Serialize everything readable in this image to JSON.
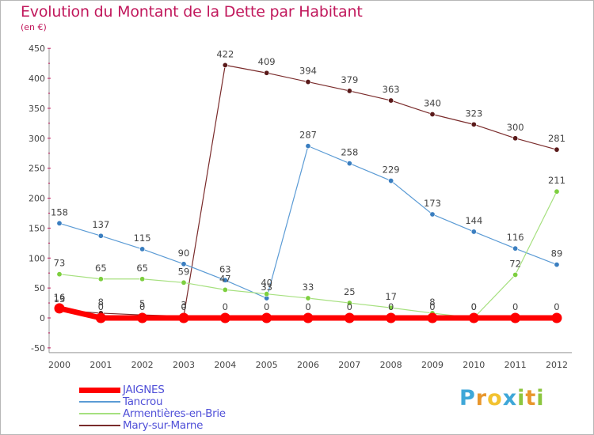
{
  "header": {
    "title": "Evolution du Montant de la Dette par Habitant",
    "subtitle": "(en €)"
  },
  "brand": {
    "letters": [
      "P",
      "r",
      "o",
      "x",
      "i",
      "t",
      "i"
    ],
    "colors": [
      "#3ea7d8",
      "#e8962c",
      "#f2c230",
      "#3ea7d8",
      "#8cc63f",
      "#e8962c",
      "#8cc63f"
    ]
  },
  "chart_data": {
    "type": "line",
    "title": "Evolution du Montant de la Dette par Habitant",
    "ylabel": "(en €)",
    "xlabel": "",
    "x": [
      "2000",
      "2001",
      "2002",
      "2003",
      "2004",
      "2005",
      "2006",
      "2007",
      "2008",
      "2009",
      "2010",
      "2011",
      "2012"
    ],
    "ylim": [
      -50,
      450
    ],
    "yticks": [
      -50,
      0,
      50,
      100,
      150,
      200,
      250,
      300,
      350,
      400,
      450
    ],
    "grid": false,
    "legend_position": "bottom-left",
    "series": [
      {
        "name": "JAIGNES",
        "color": "#ff0000",
        "values": [
          16,
          0,
          0,
          0,
          0,
          0,
          0,
          0,
          0,
          0,
          0,
          0,
          0
        ],
        "labels": [
          "16",
          "0",
          "0",
          "0",
          "0",
          "0",
          "0",
          "0",
          "0",
          "0",
          "0",
          "0",
          "0"
        ]
      },
      {
        "name": "Tancrou",
        "color": "#4d8ec9",
        "values": [
          158,
          137,
          115,
          90,
          63,
          33,
          287,
          258,
          229,
          173,
          144,
          116,
          89
        ],
        "labels": [
          "158",
          "137",
          "115",
          "90",
          "63",
          "33",
          "287",
          "258",
          "229",
          "173",
          "144",
          "116",
          "89"
        ]
      },
      {
        "name": "Armentières-en-Brie",
        "color": "#98dc6f",
        "values": [
          73,
          65,
          65,
          59,
          47,
          40,
          33,
          25,
          17,
          8,
          0,
          72,
          211
        ],
        "labels": [
          "73",
          "65",
          "65",
          "59",
          "47",
          "40",
          "33",
          "25",
          "17",
          "8",
          "0",
          "72",
          "211"
        ]
      },
      {
        "name": "Mary-sur-Marne",
        "color": "#7a2b2b",
        "values": [
          13,
          8,
          5,
          3,
          422,
          409,
          394,
          379,
          363,
          340,
          323,
          300,
          281
        ],
        "labels": [
          "13",
          "8",
          "5",
          "3",
          "422",
          "409",
          "394",
          "379",
          "363",
          "340",
          "323",
          "300",
          "281"
        ]
      }
    ]
  }
}
